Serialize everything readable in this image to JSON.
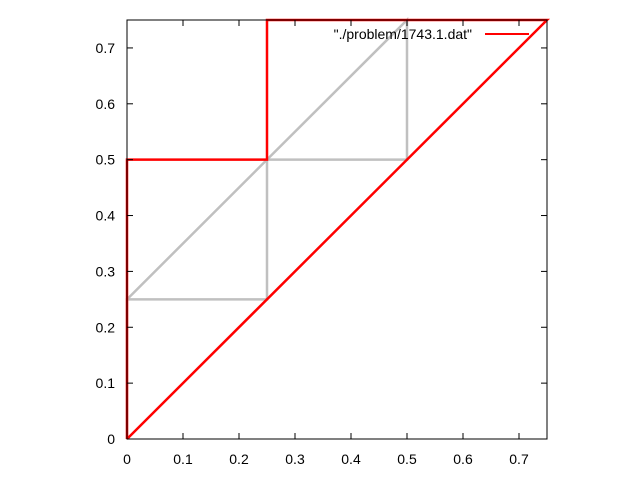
{
  "chart_data": {
    "type": "line",
    "title": "",
    "xlabel": "",
    "ylabel": "",
    "xlim": [
      0,
      0.75
    ],
    "ylim": [
      0,
      0.75
    ],
    "grid": false,
    "legend_placement": "top-right",
    "x_ticks": [
      "0",
      "0.1",
      "0.2",
      "0.3",
      "0.4",
      "0.5",
      "0.6",
      "0.7"
    ],
    "y_ticks": [
      "0",
      "0.1",
      "0.2",
      "0.3",
      "0.4",
      "0.5",
      "0.6",
      "0.7"
    ],
    "x_tick_values": [
      0,
      0.1,
      0.2,
      0.3,
      0.4,
      0.5,
      0.6,
      0.7
    ],
    "y_tick_values": [
      0,
      0.1,
      0.2,
      0.3,
      0.4,
      0.5,
      0.6,
      0.7
    ],
    "series": [
      {
        "name": "\"./problem/1743.1.dat\"",
        "color": "#ff0000",
        "in_legend": true,
        "points": [
          [
            0,
            0
          ],
          [
            0,
            0.5
          ],
          [
            0.25,
            0.5
          ],
          [
            0.25,
            0.75
          ],
          [
            0.75,
            0.75
          ],
          [
            0,
            0
          ]
        ]
      },
      {
        "color": "#c0c0c0",
        "in_legend": false,
        "points": [
          [
            0,
            0
          ],
          [
            0,
            0.25
          ],
          [
            0.25,
            0.25
          ],
          [
            0.25,
            0.5
          ],
          [
            0.5,
            0.5
          ],
          [
            0.5,
            0.75
          ],
          [
            0.25,
            0.5
          ],
          [
            0,
            0.25
          ]
        ]
      }
    ]
  }
}
